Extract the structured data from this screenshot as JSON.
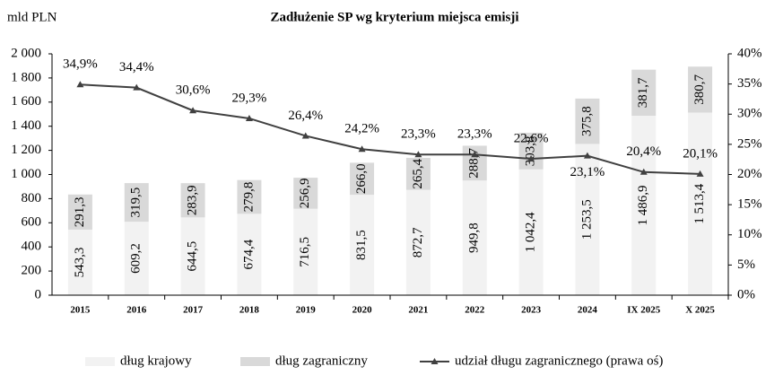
{
  "chart_data": {
    "type": "bar",
    "title": "Zadłużenie SP wg kryterium miejsca emisji",
    "y_label": "mld PLN",
    "categories": [
      "2015",
      "2016",
      "2017",
      "2018",
      "2019",
      "2020",
      "2021",
      "2022",
      "2023",
      "2024",
      "IX 2025",
      "X 2025"
    ],
    "series": [
      {
        "name": "dług krajowy",
        "type": "bar",
        "color": "#f2f2f2",
        "values": [
          543.3,
          609.2,
          644.5,
          674.4,
          716.5,
          831.5,
          872.7,
          949.8,
          1042.4,
          1253.5,
          1486.9,
          1513.4
        ],
        "value_labels": [
          "543,3",
          "609,2",
          "644,5",
          "674,4",
          "716,5",
          "831,5",
          "872,7",
          "949,8",
          "1 042,4",
          "1 253,5",
          "1 486,9",
          "1 513,4"
        ]
      },
      {
        "name": "dług zagraniczny",
        "type": "bar",
        "color": "#d9d9d9",
        "values": [
          291.3,
          319.5,
          283.9,
          279.8,
          256.9,
          266.0,
          265.4,
          288.7,
          303.8,
          375.8,
          381.7,
          380.7
        ],
        "value_labels": [
          "291,3",
          "319,5",
          "283,9",
          "279,8",
          "256,9",
          "266,0",
          "265,4",
          "288,7",
          "303,8",
          "375,8",
          "381,7",
          "380,7"
        ]
      },
      {
        "name": "udział długu zagranicznego (prawa oś)",
        "type": "line",
        "axis": "y2",
        "color": "#404040",
        "values": [
          34.9,
          34.4,
          30.6,
          29.3,
          26.4,
          24.2,
          23.3,
          23.3,
          22.6,
          23.1,
          20.4,
          20.1
        ],
        "value_labels": [
          "34,9%",
          "34,4%",
          "30,6%",
          "29,3%",
          "26,4%",
          "24,2%",
          "23,3%",
          "23,3%",
          "22,6%",
          "23,1%",
          "20,4%",
          "20,1%"
        ]
      }
    ],
    "ylim": [
      0,
      2000
    ],
    "yticks": [
      0,
      200,
      400,
      600,
      800,
      {
        "value": 1000,
        "label": "1 000"
      },
      {
        "value": 1200,
        "label": "1 200"
      },
      {
        "value": 1400,
        "label": "1 400"
      },
      {
        "value": 1600,
        "label": "1 600"
      },
      {
        "value": 1800,
        "label": "1 800"
      },
      {
        "value": 2000,
        "label": "2 000"
      }
    ],
    "y2lim": [
      0,
      40
    ],
    "y2ticks": [
      {
        "value": 0,
        "label": "0%"
      },
      {
        "value": 5,
        "label": "5%"
      },
      {
        "value": 10,
        "label": "10%"
      },
      {
        "value": 15,
        "label": "15%"
      },
      {
        "value": 20,
        "label": "20%"
      },
      {
        "value": 25,
        "label": "25%"
      },
      {
        "value": 30,
        "label": "30%"
      },
      {
        "value": 35,
        "label": "35%"
      },
      {
        "value": 40,
        "label": "40%"
      }
    ],
    "legend": "bottom"
  }
}
